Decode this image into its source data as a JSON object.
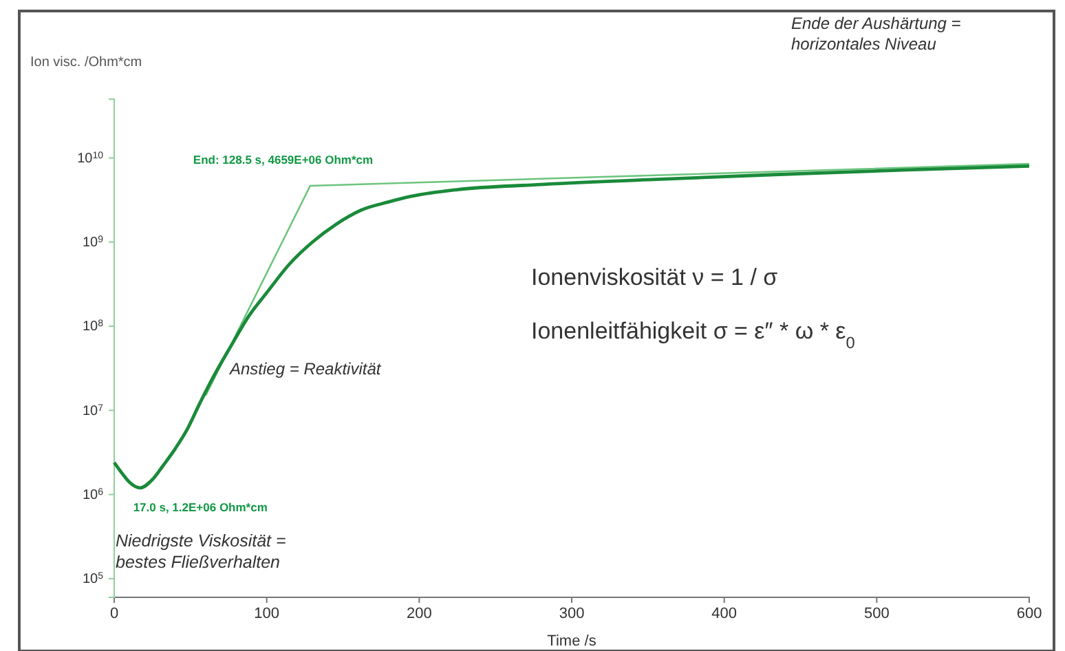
{
  "chart_data": {
    "type": "line",
    "xlabel": "Time /s",
    "ylabel": "Ion visc. /Ohm*cm",
    "log": true,
    "grid": false,
    "marker": "none",
    "line_style": "solid",
    "xlim": [
      0,
      600
    ],
    "xticks": [
      0,
      100,
      200,
      300,
      400,
      500,
      600
    ],
    "ylim": [
      60000,
      50000000000
    ],
    "yticks": [
      {
        "value": 100000,
        "label": "10$^{5}$"
      },
      {
        "value": 1000000,
        "label": "10$^{6}$"
      },
      {
        "value": 10000000,
        "label": "10$^{7}$"
      },
      {
        "value": 100000000,
        "label": "10$^{8}$"
      },
      {
        "value": 1000000000,
        "label": "10$^{9}$"
      },
      {
        "value": 10000000000,
        "label": "10$^{10}$"
      }
    ],
    "series": [
      {
        "color": "#1a8a3a",
        "x": [
          0,
          5,
          10,
          17,
          25,
          32,
          40,
          48,
          56,
          65,
          77,
          88,
          100,
          115,
          130,
          145,
          162,
          180,
          195,
          225,
          277,
          350,
          430,
          520,
          600
        ],
        "values": [
          2400000,
          1800000,
          1400000,
          1200000,
          1500000,
          2200000,
          3500000,
          6000000,
          12000000,
          25000000,
          60000000,
          130000000,
          250000000,
          550000000,
          1000000000,
          1600000000,
          2400000000,
          3000000000,
          3500000000,
          4200000000,
          4800000000,
          5500000000,
          6300000000,
          7200000000,
          8000000000
        ]
      },
      {
        "color": "#6cc47e",
        "x": [
          60,
          128.5,
          600
        ],
        "values": [
          15000000,
          4659000000,
          8500000000
        ]
      }
    ],
    "annotations": [
      {
        "text": "End: 128.5 s, 4659E+06 Ohm*cm",
        "x": 128.5,
        "y": 4659000000
      },
      {
        "text": "17.0 s, 1.2E+06 Ohm*cm",
        "x": 17,
        "y": 1200000
      },
      "Ende der Aushärtung = horizontales Niveau",
      "Anstieg = Reaktivität",
      "Niedrigste Viskosität = bestes Fließverhalten",
      "Ionenviskosität ν  = 1 / σ",
      "Ionenleitfähigkeit σ  = ε″ * ω * ε$_{0}$"
    ]
  }
}
